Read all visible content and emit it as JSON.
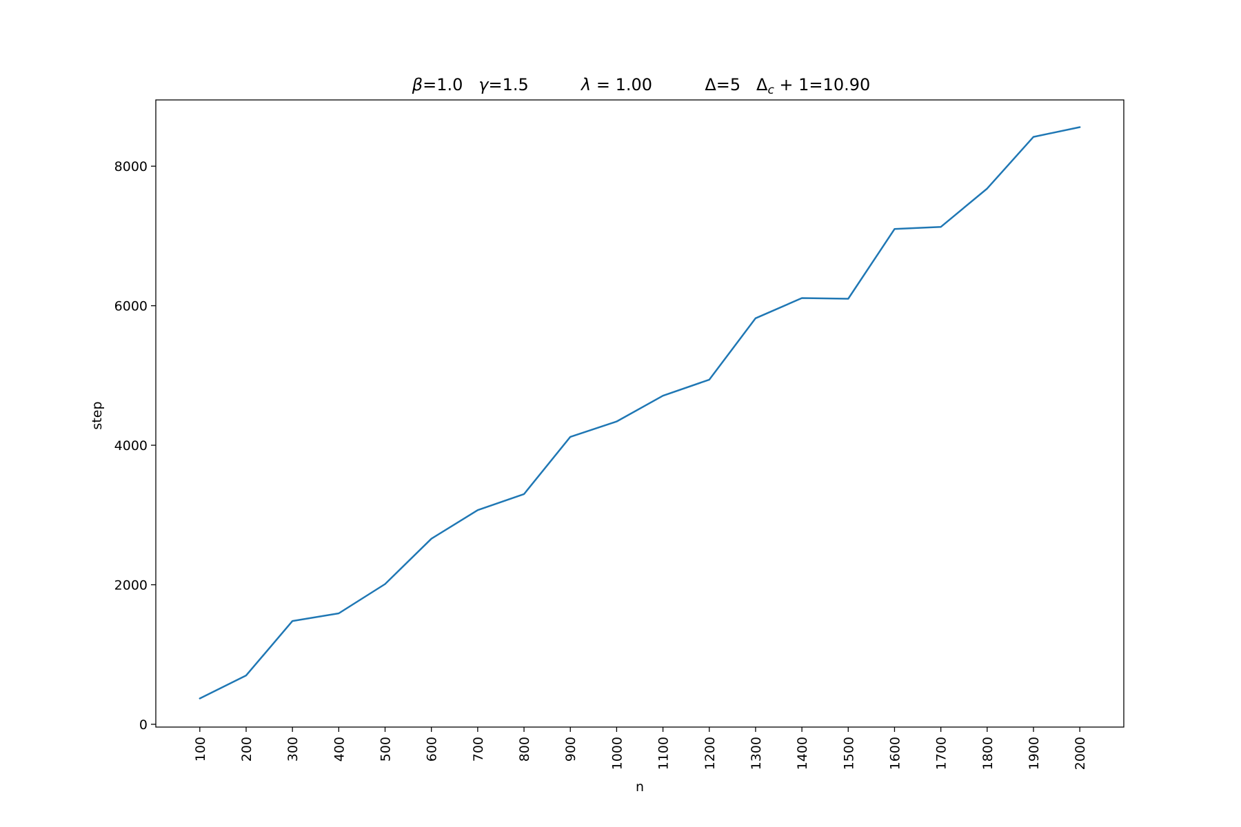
{
  "chart_data": {
    "type": "line",
    "title": "β=1.0   γ=1.5          λ = 1.00          Δ=5   Δc + 1=10.90",
    "xlabel": "n",
    "ylabel": "step",
    "categories": [
      "100",
      "200",
      "300",
      "400",
      "500",
      "600",
      "700",
      "800",
      "900",
      "1000",
      "1100",
      "1200",
      "1300",
      "1400",
      "1500",
      "1600",
      "1700",
      "1800",
      "1900",
      "2000"
    ],
    "x": [
      100,
      200,
      300,
      400,
      500,
      600,
      700,
      800,
      900,
      1000,
      1100,
      1200,
      1300,
      1400,
      1500,
      1600,
      1700,
      1800,
      1900,
      2000
    ],
    "series": [
      {
        "values": [
          370,
          700,
          1480,
          1590,
          2010,
          2660,
          3070,
          3300,
          4120,
          4340,
          4710,
          4940,
          5820,
          6110,
          6100,
          7100,
          7130,
          7680,
          8420,
          8560
        ]
      }
    ],
    "yticks": [
      0,
      2000,
      4000,
      6000,
      8000
    ],
    "ytick_labels": [
      "0",
      "2000",
      "4000",
      "6000",
      "8000"
    ],
    "xlim": [
      5,
      2095
    ],
    "ylim": [
      -40,
      8950
    ],
    "grid": false,
    "line_color": "#1f77b4"
  }
}
